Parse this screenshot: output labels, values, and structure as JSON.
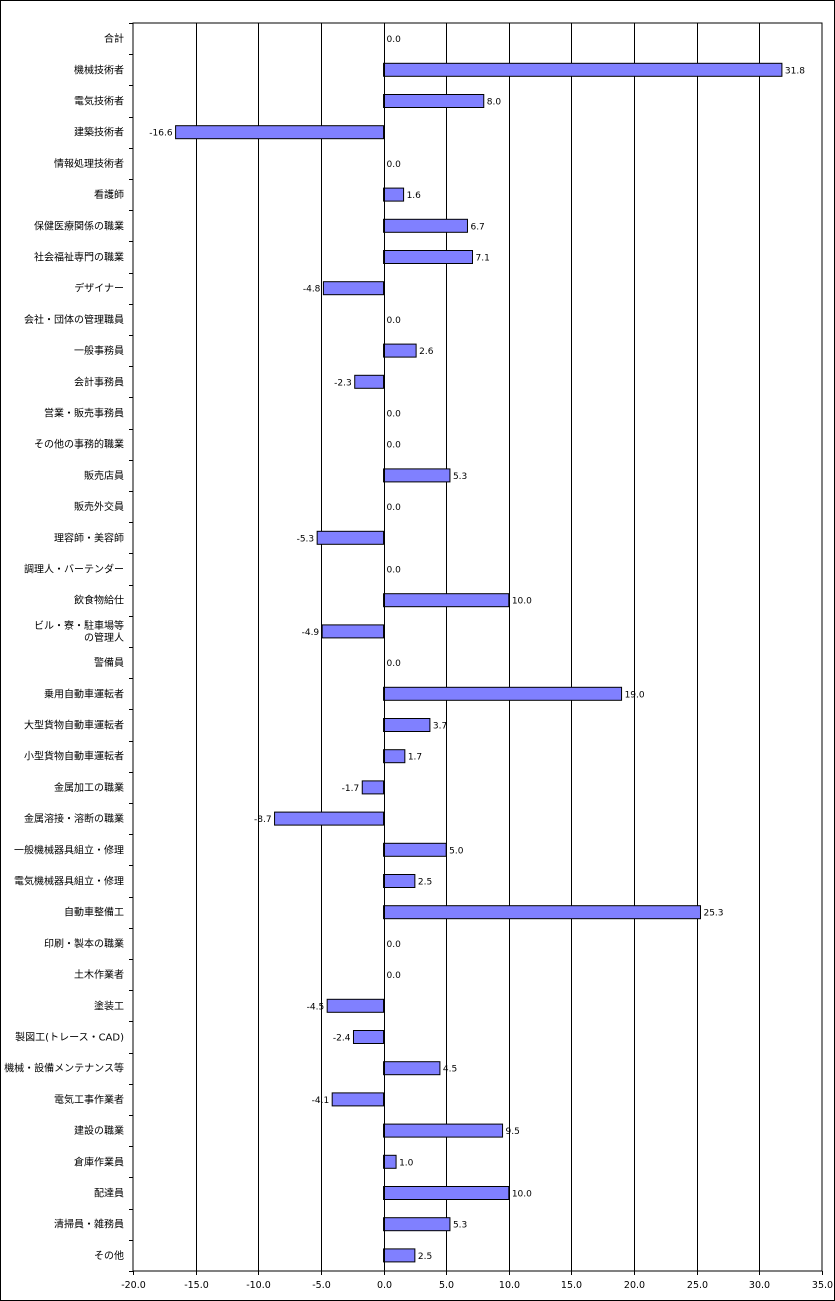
{
  "chart_data": {
    "type": "bar",
    "orientation": "horizontal",
    "title": "",
    "xlabel": "",
    "ylabel": "",
    "xlim": [
      -20,
      35
    ],
    "x_ticks": [
      "-20.0",
      "-15.0",
      "-10.0",
      "-5.0",
      "0.0",
      "5.0",
      "10.0",
      "15.0",
      "20.0",
      "25.0",
      "30.0",
      "35.0"
    ],
    "grid": true,
    "legend": "none",
    "bar_color": "#8080ff",
    "categories": [
      "合計",
      "機械技術者",
      "電気技術者",
      "建築技術者",
      "情報処理技術者",
      "看護師",
      "保健医療関係の職業",
      "社会福祉専門の職業",
      "デザイナー",
      "会社・団体の管理職員",
      "一般事務員",
      "会計事務員",
      "営業・販売事務員",
      "その他の事務的職業",
      "販売店員",
      "販売外交員",
      "理容師・美容師",
      "調理人・バーテンダー",
      "飲食物給仕",
      "ビル・寮・駐車場等\nの管理人",
      "警備員",
      "乗用自動車運転者",
      "大型貨物自動車運転者",
      "小型貨物自動車運転者",
      "金属加工の職業",
      "金属溶接・溶断の職業",
      "一般機械器具組立・修理",
      "電気機械器具組立・修理",
      "自動車整備工",
      "印刷・製本の職業",
      "土木作業者",
      "塗装工",
      "製図工(トレース・CAD)",
      "機械・設備メンテナンス等",
      "電気工事作業者",
      "建設の職業",
      "倉庫作業員",
      "配達員",
      "清掃員・雑務員",
      "その他"
    ],
    "values": [
      0.0,
      31.8,
      8.0,
      -16.6,
      0.0,
      1.6,
      6.7,
      7.1,
      -4.8,
      0.0,
      2.6,
      -2.3,
      0.0,
      0.0,
      5.3,
      0.0,
      -5.3,
      0.0,
      10.0,
      -4.9,
      0.0,
      19.0,
      3.7,
      1.7,
      -1.7,
      -8.7,
      5.0,
      2.5,
      25.3,
      0.0,
      0.0,
      -4.5,
      -2.4,
      4.5,
      -4.1,
      9.5,
      1.0,
      10.0,
      5.3,
      2.5
    ],
    "value_labels": [
      "0.0",
      "31.8",
      "8.0",
      "-16.6",
      "0.0",
      "1.6",
      "6.7",
      "7.1",
      "-4.8",
      "0.0",
      "2.6",
      "-2.3",
      "0.0",
      "0.0",
      "5.3",
      "0.0",
      "-5.3",
      "0.0",
      "10.0",
      "-4.9",
      "0.0",
      "19.0",
      "3.7",
      "1.7",
      "-1.7",
      "-8.7",
      "5.0",
      "2.5",
      "25.3",
      "0.0",
      "0.0",
      "-4.5",
      "-2.4",
      "4.5",
      "-4.1",
      "9.5",
      "1.0",
      "10.0",
      "5.3",
      "2.5"
    ]
  }
}
